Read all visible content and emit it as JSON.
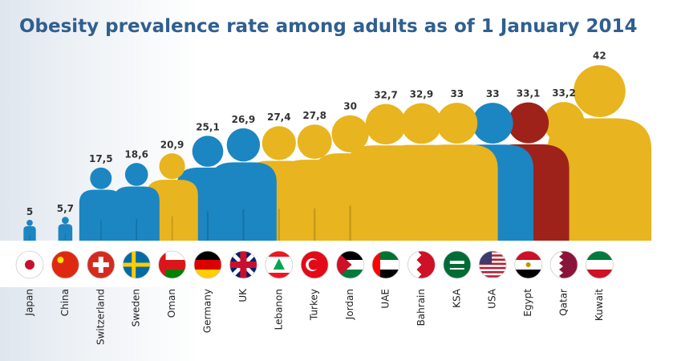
{
  "chart_data": {
    "type": "pictograph",
    "title": "Obesity prevalence rate among adults as of 1 January 2014",
    "categories": [
      "Japan",
      "China",
      "Switzerland",
      "Sweden",
      "Oman",
      "Germany",
      "UK",
      "Lebanon",
      "Turkey",
      "Jordan",
      "UAE",
      "Bahrain",
      "KSA",
      "USA",
      "Egypt",
      "Qatar",
      "Kuwait"
    ],
    "values": [
      5,
      5.7,
      17.5,
      18.6,
      20.9,
      25.1,
      26.9,
      27.4,
      27.8,
      30,
      32.7,
      32.9,
      33,
      33,
      33.1,
      33.2,
      42
    ],
    "value_labels": [
      "5",
      "5,7",
      "17,5",
      "18,6",
      "20,9",
      "25,1",
      "26,9",
      "27,4",
      "27,8",
      "30",
      "32,7",
      "32,9",
      "33",
      "33",
      "33,1",
      "33,2",
      "42"
    ],
    "colors": [
      "#1b86c2",
      "#1b86c2",
      "#1b86c2",
      "#1b86c2",
      "#e8b41f",
      "#1b86c2",
      "#1b86c2",
      "#e8b41f",
      "#e8b41f",
      "#e8b41f",
      "#e8b41f",
      "#e8b41f",
      "#e8b41f",
      "#1b86c2",
      "#9e2219",
      "#e8b41f",
      "#e8b41f"
    ]
  }
}
